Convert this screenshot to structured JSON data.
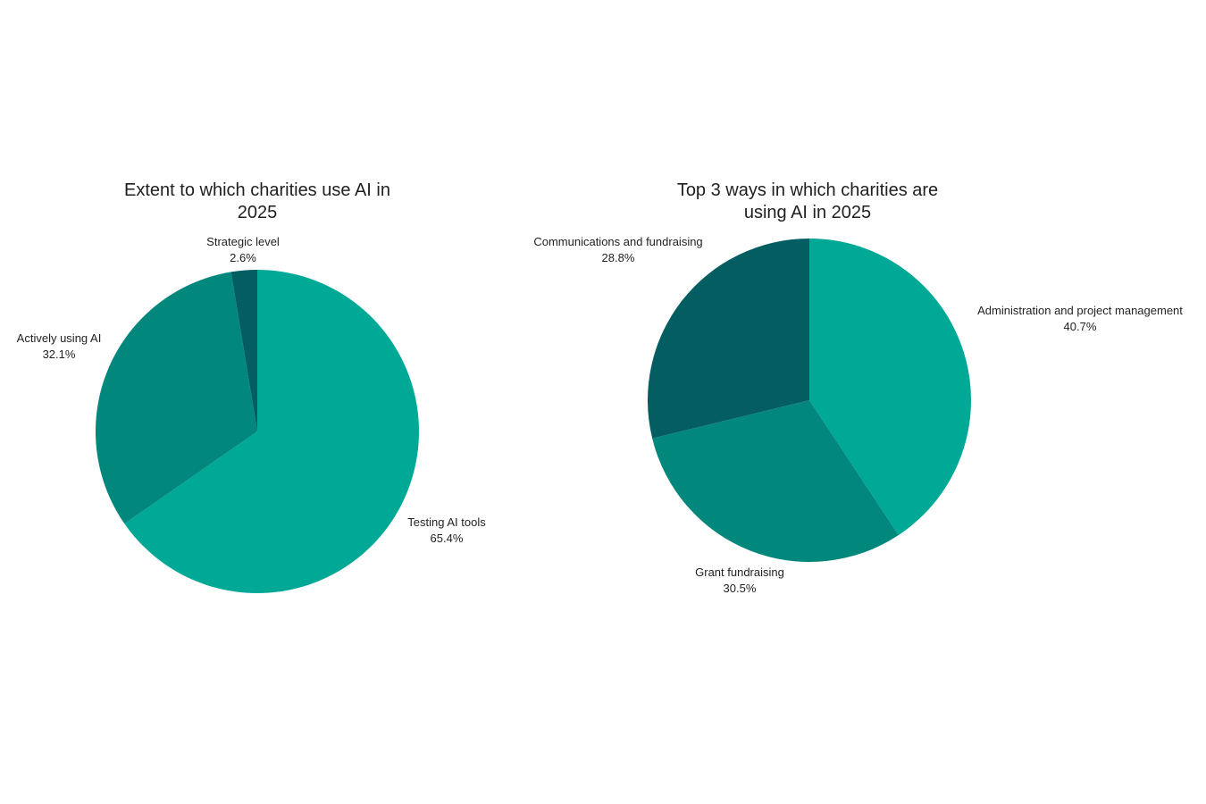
{
  "colors": {
    "light": "#00A896",
    "mid": "#02877C",
    "dark": "#045E61"
  },
  "chart_data": [
    {
      "type": "pie",
      "title": "Extent to which charities use AI in 2025",
      "title_lines": [
        "Extent to which charities use AI in",
        "2025"
      ],
      "categories": [
        "Testing AI tools",
        "Actively using AI",
        "Strategic level"
      ],
      "values": [
        65.4,
        32.1,
        2.6
      ],
      "labels": [
        "65.4%",
        "32.1%",
        "2.6%"
      ],
      "colors": [
        "#00A896",
        "#02877C",
        "#045E61"
      ],
      "start_angle": "12 o'clock",
      "direction": "clockwise",
      "legend": "none (outside slice labels)"
    },
    {
      "type": "pie",
      "title": "Top 3 ways in which charities are using AI in 2025",
      "title_lines": [
        "Top 3 ways in which charities are",
        "using AI in 2025"
      ],
      "categories": [
        "Administration and project management",
        "Grant fundraising",
        "Communications and fundraising"
      ],
      "values": [
        40.7,
        30.5,
        28.8
      ],
      "labels": [
        "40.7%",
        "30.5%",
        "28.8%"
      ],
      "colors": [
        "#00A896",
        "#02877C",
        "#045E61"
      ],
      "start_angle": "12 o'clock",
      "direction": "clockwise",
      "legend": "none (outside slice labels)"
    }
  ],
  "chart1": {
    "title_line1": "Extent to which charities use AI in",
    "title_line2": "2025",
    "slices": [
      {
        "name": "Testing AI tools",
        "pct": "65.4%"
      },
      {
        "name": "Actively using AI",
        "pct": "32.1%"
      },
      {
        "name": "Strategic level",
        "pct": "2.6%"
      }
    ]
  },
  "chart2": {
    "title_line1": "Top 3 ways in which charities are",
    "title_line2": "using AI in 2025",
    "slices": [
      {
        "name": "Administration and project management",
        "pct": "40.7%"
      },
      {
        "name": "Grant fundraising",
        "pct": "30.5%"
      },
      {
        "name": "Communications and fundraising",
        "pct": "28.8%"
      }
    ]
  }
}
